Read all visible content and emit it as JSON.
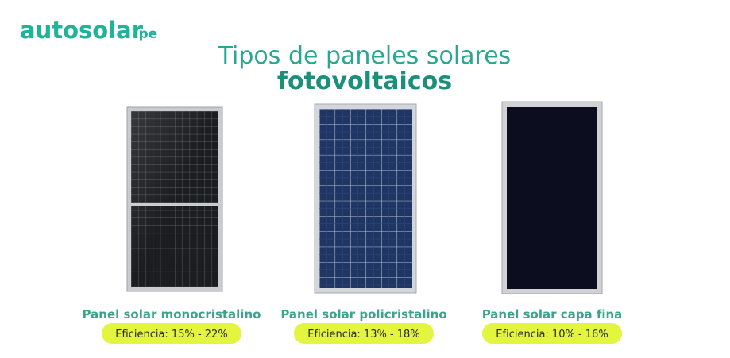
{
  "logo": {
    "text": "autosolar",
    "suffix": ".pe"
  },
  "title": {
    "line1": "Tipos de paneles solares",
    "line2": "fotovoltaicos"
  },
  "panels": [
    {
      "name": "Panel solar monocristalino",
      "efficiency": "Eficiencia: 15% - 22%"
    },
    {
      "name": "Panel solar policristalino",
      "efficiency": "Eficiencia: 13% - 18%"
    },
    {
      "name": "Panel solar capa fina",
      "efficiency": "Eficiencia: 10% - 16%"
    }
  ]
}
